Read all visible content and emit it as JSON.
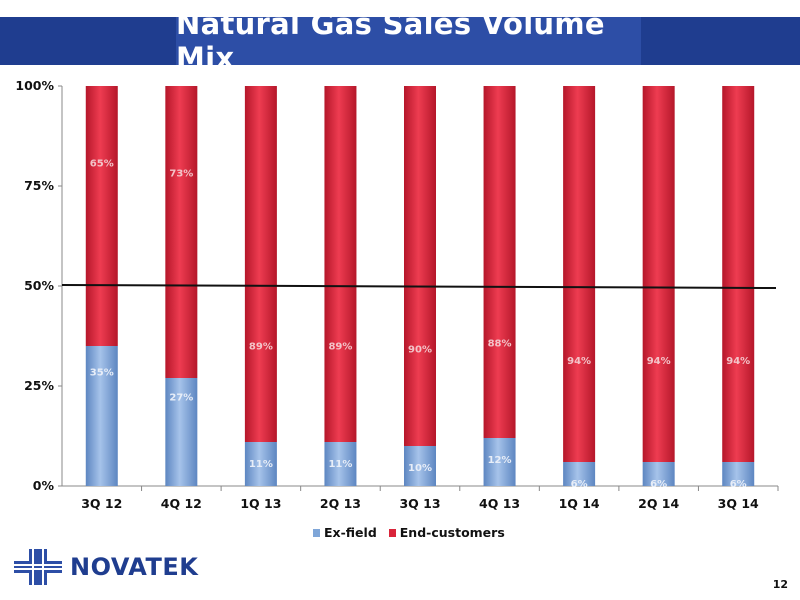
{
  "header": {
    "title": "Natural Gas Sales Volume Mix"
  },
  "chart_data": {
    "type": "bar",
    "stacked": true,
    "categories": [
      "3Q 12",
      "4Q 12",
      "1Q 13",
      "2Q 13",
      "3Q 13",
      "4Q 13",
      "1Q 14",
      "2Q 14",
      "3Q 14"
    ],
    "series": [
      {
        "name": "Ex-field",
        "color": "#7fa6d8",
        "values": [
          35,
          27,
          11,
          11,
          10,
          12,
          6,
          6,
          6
        ],
        "labels": [
          "35%",
          "27%",
          "11%",
          "11%",
          "10%",
          "12%",
          "6%",
          "6%",
          "6%"
        ]
      },
      {
        "name": "End-customers",
        "color": "#d9243a",
        "values": [
          65,
          73,
          89,
          89,
          90,
          88,
          94,
          94,
          94
        ],
        "labels": [
          "65%",
          "73%",
          "89%",
          "89%",
          "90%",
          "88%",
          "94%",
          "94%",
          "94%"
        ]
      }
    ],
    "yticks": [
      "0%",
      "25%",
      "50%",
      "75%",
      "100%"
    ],
    "ylim": [
      0,
      100
    ],
    "reference_line": 50,
    "legend_position": "bottom"
  },
  "legend": {
    "items": [
      "Ex-field",
      "End-customers"
    ]
  },
  "footer": {
    "company": "NOVATEK",
    "page": "12"
  }
}
